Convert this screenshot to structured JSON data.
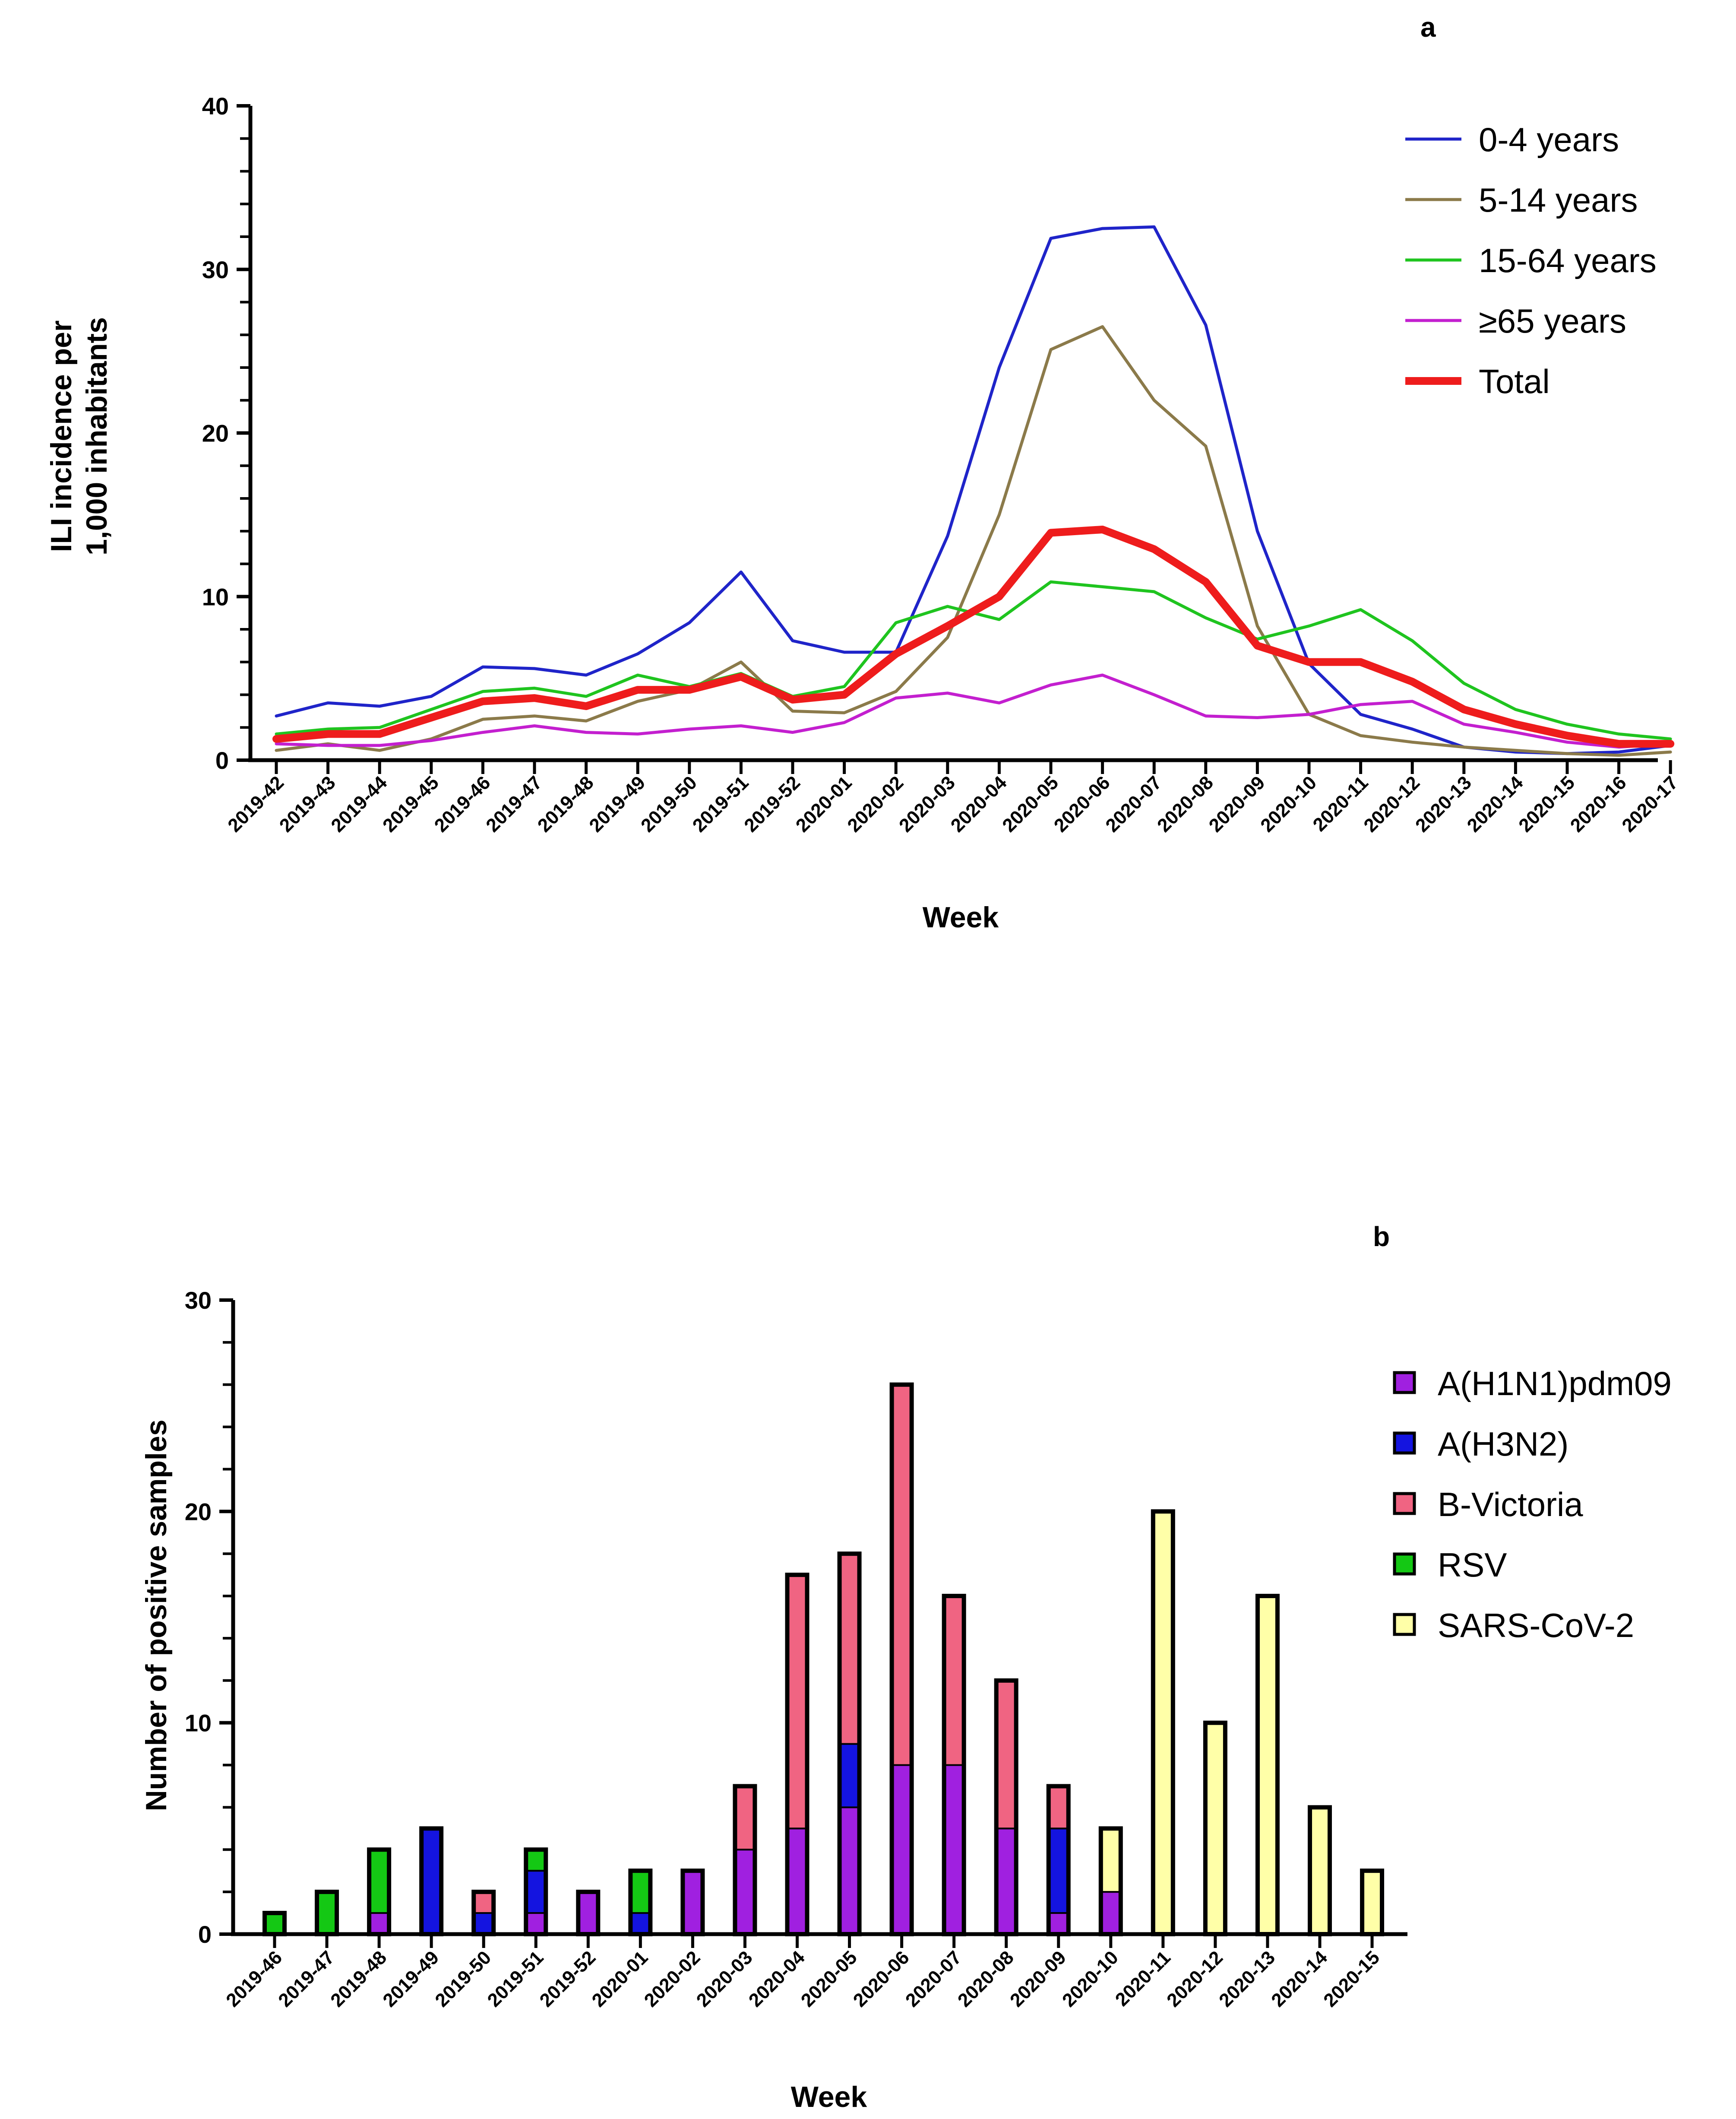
{
  "chart_data": [
    {
      "panel": "a",
      "type": "line",
      "xlabel": "Week",
      "ylabel_lines": [
        "ILI incidence per",
        "1,000 inhabitants"
      ],
      "ylim": [
        0,
        40
      ],
      "yticks": [
        0,
        10,
        20,
        30,
        40
      ],
      "categories": [
        "2019-42",
        "2019-43",
        "2019-44",
        "2019-45",
        "2019-46",
        "2019-47",
        "2019-48",
        "2019-49",
        "2019-50",
        "2019-51",
        "2019-52",
        "2020-01",
        "2020-02",
        "2020-03",
        "2020-04",
        "2020-05",
        "2020-06",
        "2020-07",
        "2020-08",
        "2020-09",
        "2020-10",
        "2020-11",
        "2020-12",
        "2020-13",
        "2020-14",
        "2020-15",
        "2020-16",
        "2020-17"
      ],
      "legend_position": "top-right",
      "series": [
        {
          "name": "0-4 years",
          "color": "#1f24c9",
          "values": [
            2.7,
            3.5,
            3.3,
            3.9,
            5.7,
            5.6,
            5.2,
            6.5,
            8.4,
            11.5,
            7.3,
            6.6,
            6.6,
            13.7,
            24.0,
            31.9,
            32.5,
            32.6,
            26.6,
            14.0,
            5.9,
            2.8,
            1.9,
            0.8,
            0.5,
            0.4,
            0.5,
            0.9
          ]
        },
        {
          "name": "5-14 years",
          "color": "#8b7a4a",
          "values": [
            0.6,
            1.0,
            0.6,
            1.3,
            2.5,
            2.7,
            2.4,
            3.6,
            4.3,
            6.0,
            3.0,
            2.9,
            4.2,
            7.5,
            15.0,
            25.1,
            26.5,
            22.0,
            19.2,
            8.2,
            2.8,
            1.5,
            1.1,
            0.8,
            0.6,
            0.4,
            0.3,
            0.5
          ]
        },
        {
          "name": "15-64 years",
          "color": "#1fc41f",
          "values": [
            1.6,
            1.9,
            2.0,
            3.1,
            4.2,
            4.4,
            3.9,
            5.2,
            4.5,
            5.3,
            3.9,
            4.5,
            8.4,
            9.4,
            8.6,
            10.9,
            10.6,
            10.3,
            8.7,
            7.4,
            8.2,
            9.2,
            7.3,
            4.7,
            3.1,
            2.2,
            1.6,
            1.3
          ]
        },
        {
          "name": "≥65 years",
          "color": "#c31fcf",
          "values": [
            1.0,
            0.9,
            0.9,
            1.2,
            1.7,
            2.1,
            1.7,
            1.6,
            1.9,
            2.1,
            1.7,
            2.3,
            3.8,
            4.1,
            3.5,
            4.6,
            5.2,
            4.0,
            2.7,
            2.6,
            2.8,
            3.4,
            3.6,
            2.2,
            1.7,
            1.1,
            0.8,
            1.0
          ]
        },
        {
          "name": "Total",
          "color": "#ee1c1c",
          "values": [
            1.3,
            1.6,
            1.6,
            2.6,
            3.6,
            3.8,
            3.3,
            4.3,
            4.3,
            5.1,
            3.7,
            4.0,
            6.5,
            8.2,
            10.0,
            13.9,
            14.1,
            12.9,
            10.9,
            7.0,
            6.0,
            6.0,
            4.8,
            3.1,
            2.2,
            1.5,
            1.0,
            1.0
          ]
        }
      ]
    },
    {
      "panel": "b",
      "type": "bar",
      "stacked": true,
      "xlabel": "Week",
      "ylabel": "Number of positive samples",
      "ylim": [
        0,
        30
      ],
      "yticks": [
        0,
        10,
        20,
        30
      ],
      "categories": [
        "2019-46",
        "2019-47",
        "2019-48",
        "2019-49",
        "2019-50",
        "2019-51",
        "2019-52",
        "2020-01",
        "2020-02",
        "2020-03",
        "2020-04",
        "2020-05",
        "2020-06",
        "2020-07",
        "2020-08",
        "2020-09",
        "2020-10",
        "2020-11",
        "2020-12",
        "2020-13",
        "2020-14",
        "2020-15"
      ],
      "legend_position": "top-right",
      "series": [
        {
          "name": "A(H1N1)pdm09",
          "color": "#a020e0",
          "values": [
            0,
            0,
            1,
            0,
            0,
            1,
            2,
            0,
            3,
            4,
            5,
            6,
            8,
            8,
            5,
            1,
            2,
            0,
            0,
            0,
            0,
            0
          ]
        },
        {
          "name": "A(H3N2)",
          "color": "#1414e0",
          "values": [
            0,
            0,
            0,
            5,
            1,
            2,
            0,
            1,
            0,
            0,
            0,
            3,
            0,
            0,
            0,
            4,
            0,
            0,
            0,
            0,
            0,
            0
          ]
        },
        {
          "name": "B-Victoria",
          "color": "#f06482",
          "values": [
            0,
            0,
            0,
            0,
            1,
            0,
            0,
            0,
            0,
            3,
            12,
            9,
            18,
            8,
            7,
            2,
            0,
            0,
            0,
            0,
            0,
            0
          ]
        },
        {
          "name": "RSV",
          "color": "#14c814",
          "values": [
            1,
            2,
            3,
            0,
            0,
            1,
            0,
            2,
            0,
            0,
            0,
            0,
            0,
            0,
            0,
            0,
            0,
            0,
            0,
            0,
            0,
            0
          ]
        },
        {
          "name": "SARS-CoV-2",
          "color": "#ffffa8",
          "values": [
            0,
            0,
            0,
            0,
            0,
            0,
            0,
            0,
            0,
            0,
            0,
            0,
            0,
            0,
            0,
            0,
            3,
            20,
            10,
            16,
            6,
            3
          ]
        }
      ]
    }
  ]
}
